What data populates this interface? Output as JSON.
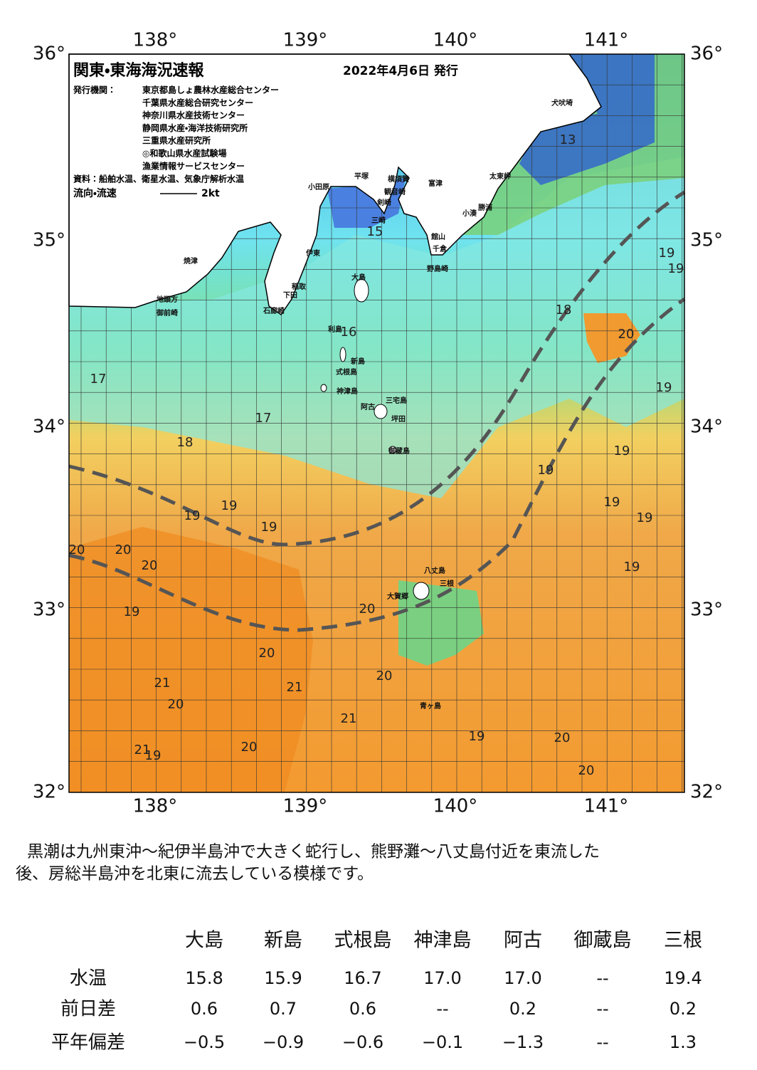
{
  "map": {
    "title": "関東・東海海況速報",
    "date": "2022年4月6日 発行",
    "issuer_label": "発行機関：",
    "issuers": [
      "東京都島しょ農林水産総合センター",
      "千葉県水産総合研究センター",
      "神奈川県水産技術センター",
      "静岡県水産・海洋技術研究所",
      "三重県水産研究所",
      "◎和歌山県水産試験場",
      "漁業情報サービスセンター"
    ],
    "source": "資料：船舶水温、衛星水温、気象庁解析水温",
    "legend_label": "流向・流速",
    "legend_speed": "2kt",
    "lon_ticks": [
      "138°",
      "139°",
      "140°",
      "141°"
    ],
    "lat_ticks": [
      "36°",
      "35°",
      "34°",
      "33°",
      "32°"
    ],
    "places": [
      "犬吠埼",
      "太東岬",
      "勝浦",
      "小湊",
      "富津",
      "館山",
      "千倉",
      "野島崎",
      "横須賀",
      "観音崎",
      "剣崎",
      "三崎",
      "平塚",
      "小田原",
      "伊東",
      "稲取",
      "下田",
      "石廊崎",
      "焼津",
      "御前崎",
      "地頭方",
      "大島",
      "利島",
      "新島",
      "式根島",
      "神津島",
      "三宅島",
      "阿古",
      "坪田",
      "御蔵島",
      "八丈島",
      "三根",
      "大賀郷",
      "青ヶ島"
    ],
    "isotherm_labels": [
      "13",
      "15",
      "16",
      "17",
      "17",
      "18",
      "18",
      "19",
      "19",
      "20",
      "19",
      "19",
      "19",
      "19",
      "19",
      "19",
      "19",
      "19",
      "19",
      "20",
      "20",
      "20",
      "20",
      "19",
      "20",
      "21",
      "21",
      "20",
      "20",
      "19",
      "21",
      "21",
      "19",
      "20",
      "20",
      "20"
    ]
  },
  "summary": [
    "黒潮は九州東沖～紀伊半島沖で大きく蛇行し、熊野灘～八丈島付近を東流した",
    "後、房総半島沖を北東に流去している模様です。"
  ],
  "table": {
    "columns": [
      "大島",
      "新島",
      "式根島",
      "神津島",
      "阿古",
      "御蔵島",
      "三根"
    ],
    "rows": [
      {
        "label": "水温",
        "values": [
          "15.8",
          "15.9",
          "16.7",
          "17.0",
          "17.0",
          "--",
          "19.4"
        ]
      },
      {
        "label": "前日差",
        "values": [
          "0.6",
          "0.7",
          "0.6",
          "--",
          "0.2",
          "--",
          "0.2"
        ]
      },
      {
        "label": "平年偏差",
        "values": [
          "−0.5",
          "−0.9",
          "−0.6",
          "−0.1",
          "−1.3",
          "--",
          "1.3"
        ]
      }
    ]
  }
}
